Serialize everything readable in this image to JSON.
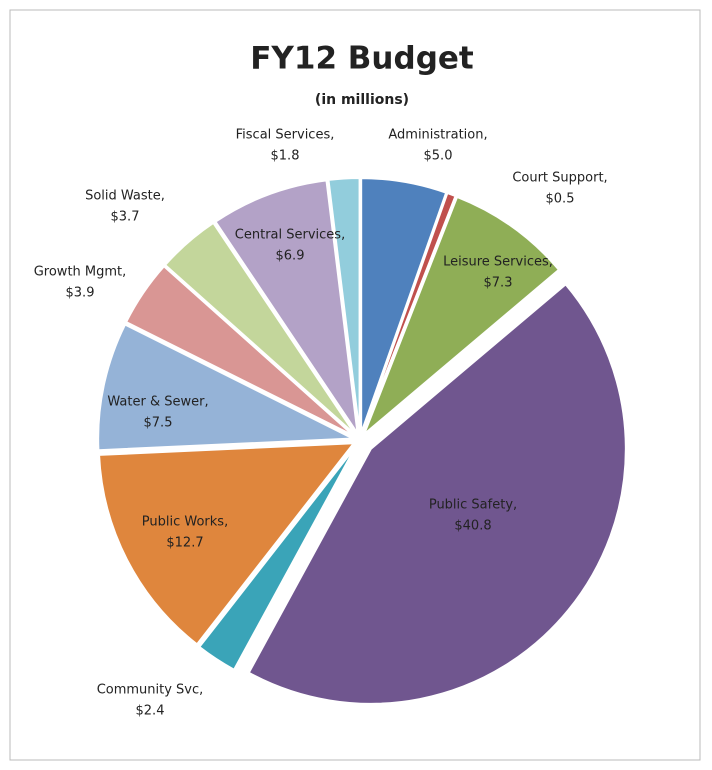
{
  "chart_data": {
    "type": "pie",
    "title": "FY12 Budget",
    "subtitle": "(in millions)",
    "categories": [
      "Administration,",
      "Court Support,",
      "Leisure Services,",
      "Public Safety,",
      "Community Svc,",
      "Public Works,",
      "Water & Sewer,",
      "Growth Mgmt,",
      "Solid Waste,",
      "Central Services,",
      "Fiscal Services,"
    ],
    "values": [
      5.0,
      0.5,
      7.3,
      40.8,
      2.4,
      12.7,
      7.5,
      3.9,
      3.7,
      6.9,
      1.8
    ],
    "value_labels": [
      "$5.0",
      "$0.5",
      "$7.3",
      "$40.8",
      "$2.4",
      "$12.7",
      "$7.5",
      "$3.9",
      "$3.7",
      "$6.9",
      "$1.8"
    ],
    "colors": [
      "#4f81bd",
      "#c0504d",
      "#8fae56",
      "#70568f",
      "#3aa4b8",
      "#df863d",
      "#95b3d7",
      "#d99694",
      "#c3d69b",
      "#b3a2c7",
      "#92cddc"
    ]
  }
}
